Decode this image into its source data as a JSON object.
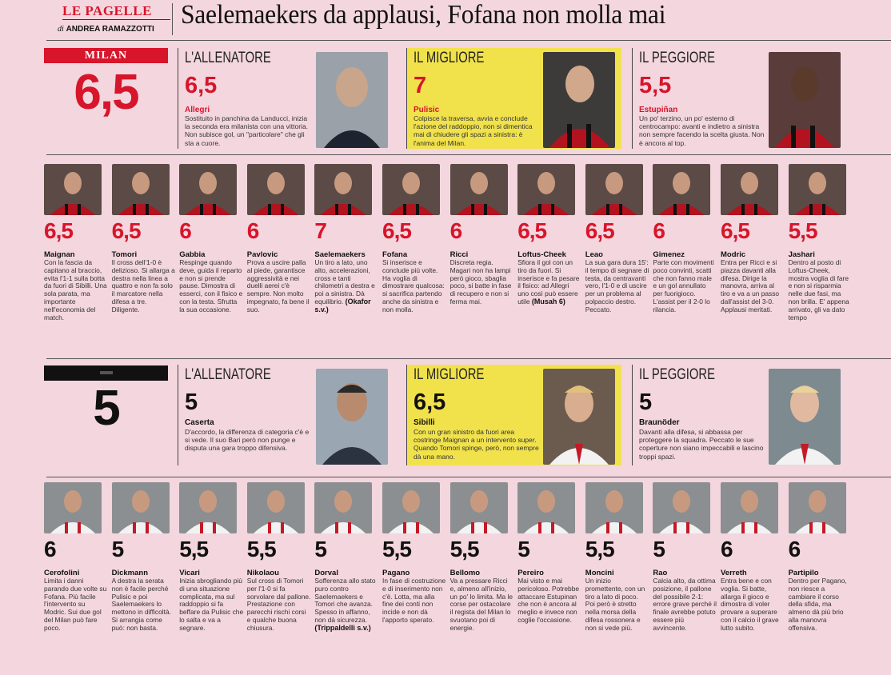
{
  "masthead": {
    "brand": "LE PAGELLE",
    "byline_prefix": "di",
    "author": "ANDREA RAMAZZOTTI",
    "headline": "Saelemaekers da applausi, Fofana non molla mai"
  },
  "colors": {
    "accent_red": "#d7152b",
    "highlight_yellow": "#f1e24c",
    "page_pink": "#f3d6de"
  },
  "milan": {
    "team": "MILAN",
    "team_grade": "6,5",
    "coach": {
      "title": "L'ALLENATORE",
      "grade": "6,5",
      "name": "Allegri",
      "text": "Sostituito in panchina da Landucci, inizia la seconda era milanista con una vittoria. Non subisce gol, un \"particolare\" che gli sta a cuore."
    },
    "best": {
      "title": "IL MIGLIORE",
      "grade": "7",
      "name": "Pulisic",
      "text": "Colpisce la traversa, avvia e conclude l'azione del raddoppio, non si dimentica mai di chiudere gli spazi a sinistra: è l'anima del Milan."
    },
    "worst": {
      "title": "IL PEGGIORE",
      "grade": "5,5",
      "name": "Estupiñan",
      "text": "Un po' terzino, un po' esterno di centrocampo: avanti e indietro a sinistra non sempre facendo la scelta giusta. Non è ancora al top."
    },
    "players": [
      {
        "name": "Maignan",
        "grade": "6,5",
        "text": "Con la fascia da capitano al braccio, evita l'1-1 sulla botta da fuori di Sibilli. Una sola parata, ma importante nell'economia del match."
      },
      {
        "name": "Tomori",
        "grade": "6,5",
        "text": "Il cross dell'1-0 è delizioso. Si allarga a destra nella linea a quattro e non fa solo il marcatore nella difesa a tre. Diligente."
      },
      {
        "name": "Gabbia",
        "grade": "6",
        "text": "Respinge quando deve, guida il reparto e non si prende pause. Dimostra di esserci, con il fisico e con la testa. Sfrutta la sua occasione."
      },
      {
        "name": "Pavlovic",
        "grade": "6",
        "text": "Prova a uscire palla al piede, garantisce aggressività e nei duelli aerei c'è sempre. Non molto impegnato, fa bene il suo."
      },
      {
        "name": "Saelemaekers",
        "grade": "7",
        "text": "Un tiro a lato, uno alto, accelerazioni, cross e tanti chilometri a destra e poi a sinistra. Dà equilibrio.",
        "sub": "(Okafor s.v.)"
      },
      {
        "name": "Fofana",
        "grade": "6,5",
        "text": "Si inserisce e conclude più volte. Ha voglia di dimostrare qualcosa: si sacrifica partendo anche da sinistra e non molla."
      },
      {
        "name": "Ricci",
        "grade": "6",
        "text": "Discreta regia. Magari non ha lampi però gioco, sbaglia poco, si batte in fase di recupero e non si ferma mai."
      },
      {
        "name": "Loftus-Cheek",
        "grade": "6,5",
        "text": "Sfiora il gol con un tiro da fuori. Si inserisce e fa pesare il fisico: ad Allegri uno così può essere utile",
        "sub": "(Musah 6)"
      },
      {
        "name": "Leao",
        "grade": "6,5",
        "text": "La sua gara dura 15': il tempo di segnare di testa, da centravanti vero, l'1-0 e di uscire per un problema al polpaccio destro. Peccato."
      },
      {
        "name": "Gimenez",
        "grade": "6",
        "text": "Parte con movimenti poco convinti, scatti che non fanno male e un gol annullato per fuorigioco. L'assist per il 2-0 lo rilancia."
      },
      {
        "name": "Modric",
        "grade": "6,5",
        "text": "Entra per Ricci e si piazza davanti alla difesa. Dirige la manovra, arriva al tiro e va a un passo dall'assist del 3-0. Applausi meritati."
      },
      {
        "name": "Jashari",
        "grade": "5,5",
        "text": "Dentro al posto di Loftus-Cheek, mostra voglia di fare e non si risparmia nelle due fasi, ma non brilla. E' appena arrivato, gli va dato tempo"
      }
    ]
  },
  "bari": {
    "team_grade": "5",
    "coach": {
      "title": "L'ALLENATORE",
      "grade": "5",
      "name": "Caserta",
      "text": "D'accordo, la differenza di categoria c'è e si vede. Il suo Bari però non punge e disputa una gara troppo difensiva."
    },
    "best": {
      "title": "IL MIGLIORE",
      "grade": "6,5",
      "name": "Sibilli",
      "text": "Con un gran sinistro da fuori area costringe Maignan a un intervento super. Quando Tomori spinge, però, non sempre dà una mano."
    },
    "worst": {
      "title": "IL PEGGIORE",
      "grade": "5",
      "name": "Braunöder",
      "text": "Davanti alla difesa, si abbassa per proteggere la squadra. Peccato le sue coperture non siano impeccabili e lascino troppi spazi."
    },
    "players": [
      {
        "name": "Cerofolini",
        "grade": "6",
        "text": "Limita i danni parando due volte su Fofana. Più facile l'intervento su Modric. Sui due gol del Milan può fare poco."
      },
      {
        "name": "Dickmann",
        "grade": "5",
        "text": "A destra la serata non è facile perché Pulisic e poi Saelemaekers lo mettono in difficoltà. Si arrangia come può: non basta."
      },
      {
        "name": "Vicari",
        "grade": "5,5",
        "text": "Inizia sbrogliando più di una situazione complicata, ma sul raddoppio si fa beffare da Pulisic che lo salta e va a segnare."
      },
      {
        "name": "Nikolaou",
        "grade": "5,5",
        "text": "Sul cross di Tomori per l'1-0 si fa sorvolare dal pallone. Prestazione con parecchi rischi corsi e qualche buona chiusura."
      },
      {
        "name": "Dorval",
        "grade": "5",
        "text": "Sofferenza allo stato puro contro Saelemaekers e Tomori che avanza. Spesso in affanno, non dà sicurezza.",
        "sub": "(Trippaldelli s.v.)"
      },
      {
        "name": "Pagano",
        "grade": "5,5",
        "text": "In fase di costruzione e di inserimento non c'è. Lotta, ma alla fine dei conti non incide e non dà l'apporto sperato."
      },
      {
        "name": "Bellomo",
        "grade": "5,5",
        "text": "Va a pressare Ricci e, almeno all'inizio, un po' lo limita. Ma le corse per ostacolare il regista del Milan lo svuotano poi di energie."
      },
      {
        "name": "Pereiro",
        "grade": "5",
        "text": "Mai visto e mai pericoloso. Potrebbe attaccare Estupinan che non è ancora al meglio e invece non coglie l'occasione."
      },
      {
        "name": "Moncini",
        "grade": "5,5",
        "text": "Un inizio promettente, con un tiro a lato di poco. Poi però è stretto nella morsa della difesa rossonera e non si vede più."
      },
      {
        "name": "Rao",
        "grade": "5",
        "text": "Calcia alto, da ottima posizione, il pallone del possibile 2-1: errore grave perché il finale avrebbe potuto essere più avvincente."
      },
      {
        "name": "Verreth",
        "grade": "6",
        "text": "Entra bene e con voglia. Si batte, allarga il gioco e dimostra di voler provare a superare con il calcio il grave lutto subito."
      },
      {
        "name": "Partipilo",
        "grade": "6",
        "text": "Dentro per Pagano, non riesce a cambiare il corso della sfida, ma almeno dà più brio alla manovra offensiva."
      }
    ]
  }
}
